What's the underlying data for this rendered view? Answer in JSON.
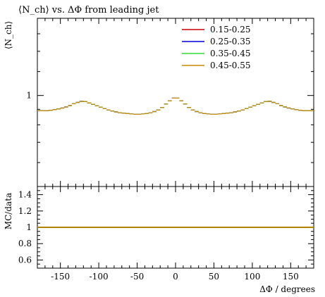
{
  "chart_data": [
    {
      "type": "line",
      "title": "⟨N_ch⟩ vs. ΔΦ from leading jet",
      "ylabel": "⟨N_ch⟩",
      "xlabel": "",
      "xlim": [
        -180,
        180
      ],
      "y_scale": "log",
      "ylim": [
        0.5,
        1.8
      ],
      "y_ticks": [
        1
      ],
      "y_tick_labels": [
        "1"
      ],
      "grid": false,
      "legend": "top-right",
      "x": [
        -180,
        -170,
        -160,
        -150,
        -140,
        -130,
        -120,
        -110,
        -100,
        -90,
        -80,
        -70,
        -60,
        -50,
        -40,
        -30,
        -20,
        -10,
        0,
        10,
        20,
        30,
        40,
        50,
        60,
        70,
        80,
        90,
        100,
        110,
        120,
        130,
        140,
        150,
        160,
        170,
        180
      ],
      "series": [
        {
          "name": "0.15-0.25",
          "color": "#cc0000",
          "values": [
            0.89,
            0.89,
            0.895,
            0.905,
            0.92,
            0.945,
            0.96,
            0.94,
            0.92,
            0.9,
            0.885,
            0.875,
            0.87,
            0.865,
            0.87,
            0.88,
            0.9,
            0.95,
            0.99,
            0.95,
            0.9,
            0.88,
            0.87,
            0.865,
            0.87,
            0.875,
            0.885,
            0.9,
            0.92,
            0.94,
            0.96,
            0.945,
            0.92,
            0.905,
            0.895,
            0.89,
            0.89
          ]
        },
        {
          "name": "0.25-0.35",
          "color": "#0000dd",
          "values": [
            0.89,
            0.89,
            0.895,
            0.905,
            0.92,
            0.945,
            0.96,
            0.94,
            0.92,
            0.9,
            0.885,
            0.875,
            0.87,
            0.865,
            0.87,
            0.88,
            0.9,
            0.95,
            0.99,
            0.95,
            0.9,
            0.88,
            0.87,
            0.865,
            0.87,
            0.875,
            0.885,
            0.9,
            0.92,
            0.94,
            0.96,
            0.945,
            0.92,
            0.905,
            0.895,
            0.89,
            0.89
          ]
        },
        {
          "name": "0.35-0.45",
          "color": "#33dd33",
          "values": [
            0.89,
            0.89,
            0.895,
            0.905,
            0.92,
            0.945,
            0.96,
            0.94,
            0.92,
            0.9,
            0.885,
            0.875,
            0.87,
            0.865,
            0.87,
            0.88,
            0.9,
            0.95,
            0.99,
            0.95,
            0.9,
            0.88,
            0.87,
            0.865,
            0.87,
            0.875,
            0.885,
            0.9,
            0.92,
            0.94,
            0.96,
            0.945,
            0.92,
            0.905,
            0.895,
            0.89,
            0.89
          ]
        },
        {
          "name": "0.45-0.55",
          "color": "#cc8800",
          "values": [
            0.89,
            0.89,
            0.895,
            0.905,
            0.92,
            0.945,
            0.96,
            0.94,
            0.92,
            0.9,
            0.885,
            0.875,
            0.87,
            0.865,
            0.87,
            0.88,
            0.9,
            0.95,
            0.99,
            0.95,
            0.9,
            0.88,
            0.87,
            0.865,
            0.87,
            0.875,
            0.885,
            0.9,
            0.92,
            0.94,
            0.96,
            0.945,
            0.92,
            0.905,
            0.895,
            0.89,
            0.89
          ]
        }
      ]
    },
    {
      "type": "line",
      "title": "",
      "ylabel": "MC/data",
      "xlabel": "ΔΦ / degrees",
      "xlim": [
        -180,
        180
      ],
      "x_ticks": [
        -150,
        -100,
        -50,
        0,
        50,
        100,
        150
      ],
      "x_tick_labels": [
        "-150",
        "-100",
        "-50",
        "0",
        "50",
        "100",
        "150"
      ],
      "ylim": [
        0.5,
        1.5
      ],
      "y_ticks": [
        0.6,
        0.8,
        1.0,
        1.2,
        1.4
      ],
      "y_tick_labels": [
        "0.6",
        "0.8",
        "1",
        "1.2",
        "1.4"
      ],
      "grid": false,
      "x": [
        -180,
        180
      ],
      "series": [
        {
          "name": "",
          "color": "#b08000",
          "values": [
            1,
            1
          ]
        }
      ]
    }
  ]
}
